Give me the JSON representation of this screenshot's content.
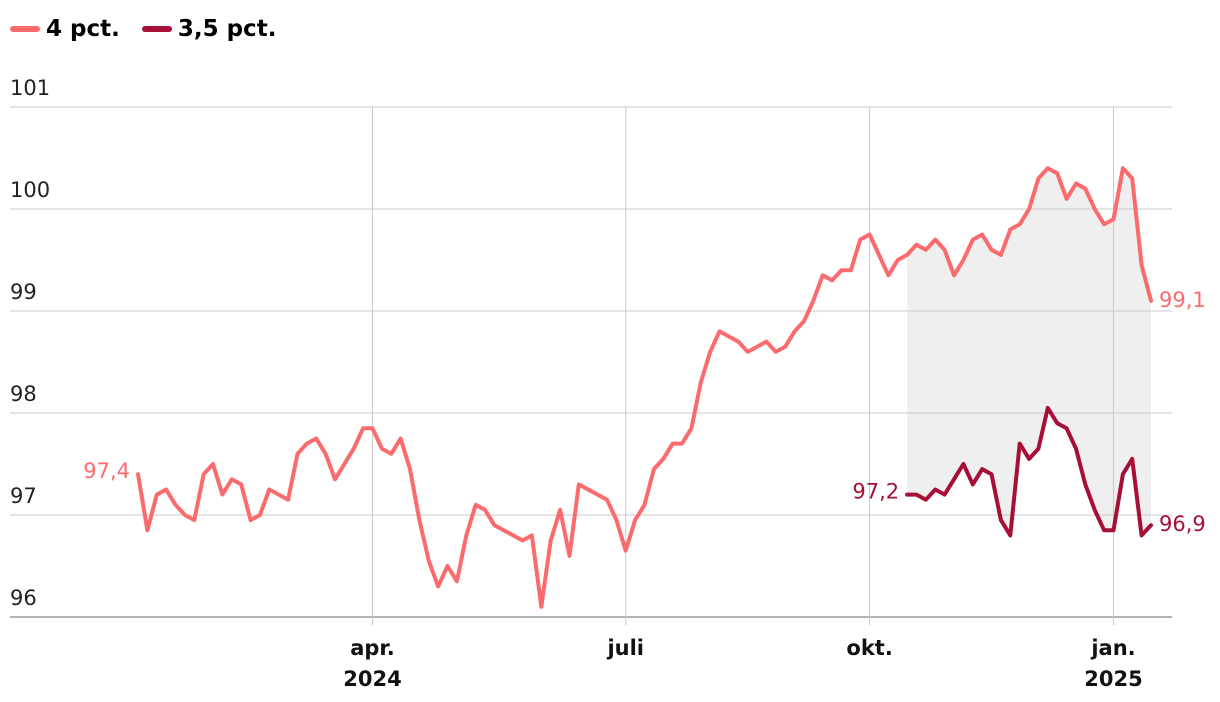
{
  "chart_data": {
    "type": "line",
    "categories": [
      null,
      null,
      null,
      null,
      null,
      null,
      null,
      null,
      null,
      null,
      null,
      null,
      null,
      null,
      null,
      null,
      null,
      null,
      null,
      null,
      null,
      null,
      null,
      null,
      null,
      "apr.\n2024",
      null,
      null,
      null,
      null,
      null,
      null,
      null,
      null,
      null,
      null,
      null,
      null,
      null,
      null,
      null,
      null,
      null,
      null,
      null,
      null,
      null,
      null,
      null,
      null,
      null,
      null,
      "juli",
      null,
      null,
      null,
      null,
      null,
      null,
      null,
      null,
      null,
      null,
      null,
      null,
      null,
      null,
      null,
      null,
      null,
      null,
      null,
      null,
      null,
      null,
      null,
      null,
      null,
      "okt.",
      null,
      null,
      null,
      null,
      null,
      null,
      null,
      null,
      null,
      null,
      null,
      null,
      null,
      null,
      null,
      null,
      null,
      null,
      null,
      null,
      null,
      null,
      null,
      null,
      null,
      "jan.\n2025",
      null,
      null,
      null,
      null
    ],
    "series": [
      {
        "name": "4 pct.",
        "color": "#fb6b6e",
        "values": [
          97.4,
          96.85,
          97.2,
          97.25,
          97.1,
          97.0,
          96.95,
          97.4,
          97.5,
          97.2,
          97.35,
          97.3,
          96.95,
          97.0,
          97.25,
          97.2,
          97.15,
          97.6,
          97.7,
          97.75,
          97.6,
          97.35,
          97.5,
          97.65,
          97.85,
          97.85,
          97.65,
          97.6,
          97.75,
          97.45,
          96.95,
          96.55,
          96.3,
          96.5,
          96.35,
          96.8,
          97.1,
          97.05,
          96.9,
          96.85,
          96.8,
          96.75,
          96.8,
          96.1,
          96.75,
          97.05,
          96.6,
          97.3,
          97.25,
          97.2,
          97.15,
          96.95,
          96.65,
          96.95,
          97.1,
          97.45,
          97.55,
          97.7,
          97.7,
          97.85,
          98.3,
          98.6,
          98.8,
          98.75,
          98.7,
          98.6,
          98.65,
          98.7,
          98.6,
          98.65,
          98.8,
          98.9,
          99.1,
          99.35,
          99.3,
          99.4,
          99.4,
          99.7,
          99.75,
          99.55,
          99.35,
          99.5,
          99.55,
          99.65,
          99.6,
          99.7,
          99.6,
          99.35,
          99.5,
          99.7,
          99.75,
          99.6,
          99.55,
          99.8,
          99.85,
          100.0,
          100.3,
          100.4,
          100.35,
          100.1,
          100.25,
          100.2,
          100.0,
          99.85,
          99.9,
          100.4,
          100.3,
          99.45,
          99.1
        ],
        "value_labels": [
          "97,4",
          null,
          null,
          null,
          null,
          null,
          null,
          null,
          null,
          null,
          null,
          null,
          null,
          null,
          null,
          null,
          null,
          null,
          null,
          null,
          null,
          null,
          null,
          null,
          null,
          null,
          null,
          null,
          null,
          null,
          null,
          null,
          null,
          null,
          null,
          null,
          null,
          null,
          null,
          null,
          null,
          null,
          null,
          null,
          null,
          null,
          null,
          null,
          null,
          null,
          null,
          null,
          null,
          null,
          null,
          null,
          null,
          null,
          null,
          null,
          null,
          null,
          null,
          null,
          null,
          null,
          null,
          null,
          null,
          null,
          null,
          null,
          null,
          null,
          null,
          null,
          null,
          null,
          null,
          null,
          null,
          null,
          null,
          null,
          null,
          null,
          null,
          null,
          null,
          null,
          null,
          null,
          null,
          null,
          null,
          null,
          null,
          null,
          null,
          null,
          null,
          null,
          null,
          null,
          null,
          null,
          null,
          null,
          "99,1"
        ]
      },
      {
        "name": "3,5 pct.",
        "color": "#a70f37",
        "values": [
          null,
          null,
          null,
          null,
          null,
          null,
          null,
          null,
          null,
          null,
          null,
          null,
          null,
          null,
          null,
          null,
          null,
          null,
          null,
          null,
          null,
          null,
          null,
          null,
          null,
          null,
          null,
          null,
          null,
          null,
          null,
          null,
          null,
          null,
          null,
          null,
          null,
          null,
          null,
          null,
          null,
          null,
          null,
          null,
          null,
          null,
          null,
          null,
          null,
          null,
          null,
          null,
          null,
          null,
          null,
          null,
          null,
          null,
          null,
          null,
          null,
          null,
          null,
          null,
          null,
          null,
          null,
          null,
          null,
          null,
          null,
          null,
          null,
          null,
          null,
          null,
          null,
          null,
          null,
          null,
          null,
          null,
          97.2,
          97.2,
          97.15,
          97.25,
          97.2,
          97.35,
          97.5,
          97.3,
          97.45,
          97.4,
          96.95,
          96.8,
          97.7,
          97.55,
          97.65,
          98.05,
          97.9,
          97.85,
          97.65,
          97.3,
          97.05,
          96.85,
          96.85,
          97.4,
          97.55,
          96.8,
          96.9
        ],
        "value_labels": [
          null,
          null,
          null,
          null,
          null,
          null,
          null,
          null,
          null,
          null,
          null,
          null,
          null,
          null,
          null,
          null,
          null,
          null,
          null,
          null,
          null,
          null,
          null,
          null,
          null,
          null,
          null,
          null,
          null,
          null,
          null,
          null,
          null,
          null,
          null,
          null,
          null,
          null,
          null,
          null,
          null,
          null,
          null,
          null,
          null,
          null,
          null,
          null,
          null,
          null,
          null,
          null,
          null,
          null,
          null,
          null,
          null,
          null,
          null,
          null,
          null,
          null,
          null,
          null,
          null,
          null,
          null,
          null,
          null,
          null,
          null,
          null,
          null,
          null,
          null,
          null,
          null,
          null,
          null,
          null,
          null,
          null,
          "97,2",
          null,
          null,
          null,
          null,
          null,
          null,
          null,
          null,
          null,
          null,
          null,
          null,
          null,
          null,
          null,
          null,
          null,
          null,
          null,
          null,
          null,
          null,
          null,
          null,
          null,
          "96,9"
        ]
      }
    ],
    "ylim": [
      96,
      101
    ],
    "yticks": [
      96,
      97,
      98,
      99,
      100,
      101
    ],
    "grid": true,
    "legend": "top-left",
    "area_between_color": "#efefef"
  }
}
